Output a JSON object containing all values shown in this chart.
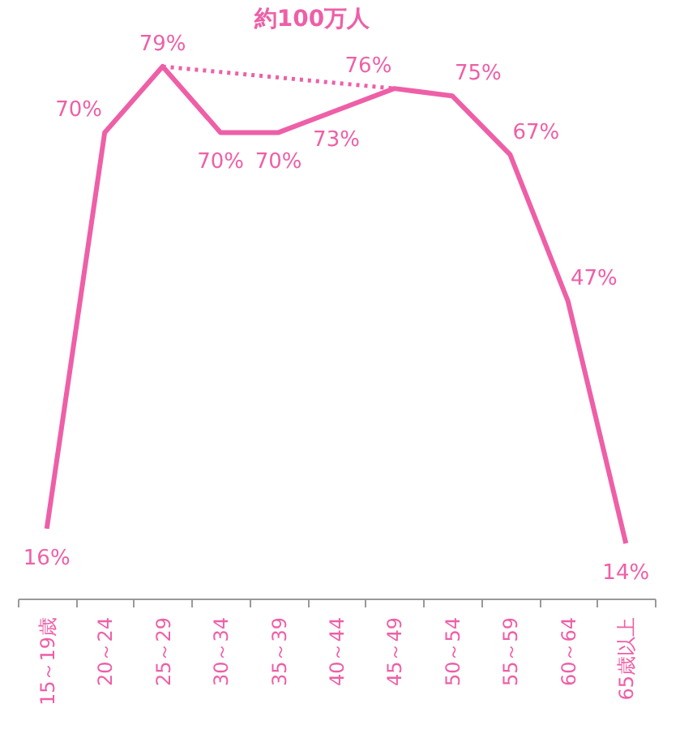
{
  "chart_data": {
    "type": "line",
    "categories": [
      "15～19歳",
      "20～24",
      "25～29",
      "30～34",
      "35～39",
      "40～44",
      "45～49",
      "50～54",
      "55～59",
      "60～64",
      "65歳以上"
    ],
    "series": [
      {
        "color": "#ee5fa7",
        "values": [
          16,
          70,
          79,
          70,
          70,
          73,
          76,
          75,
          67,
          47,
          14
        ],
        "value_labels": [
          "16%",
          "70%",
          "79%",
          "70%",
          "70%",
          "73%",
          "76%",
          "75%",
          "67%",
          "47%",
          "14%"
        ],
        "line_style": "solid"
      },
      {
        "color": "#ee5fa7",
        "values": [
          null,
          null,
          79,
          null,
          null,
          null,
          76,
          null,
          null,
          null,
          null
        ],
        "line_style": "dotted"
      }
    ],
    "annotations": [
      "約100万人"
    ],
    "marker": "none",
    "grid": false
  }
}
